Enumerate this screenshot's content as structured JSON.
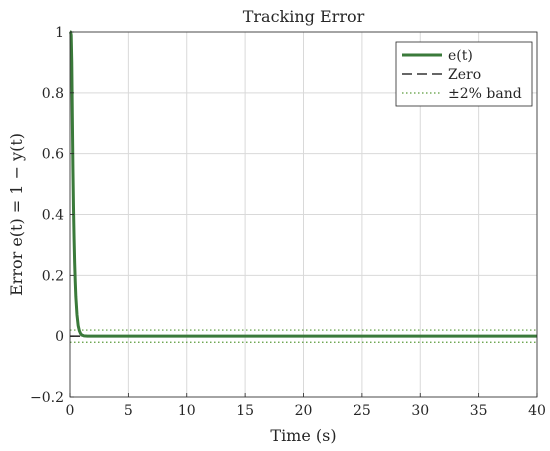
{
  "chart_data": {
    "type": "line",
    "title": "Tracking Error",
    "xlabel": "Time (s)",
    "ylabel": "Error e(t) = 1 − y(t)",
    "xlim": [
      0,
      40
    ],
    "ylim": [
      -0.2,
      1
    ],
    "x_ticks": [
      0,
      5,
      10,
      15,
      20,
      25,
      30,
      35,
      40
    ],
    "y_ticks": [
      -0.2,
      0,
      0.2,
      0.4,
      0.6,
      0.8,
      1
    ],
    "x_tick_labels": [
      "0",
      "5",
      "10",
      "15",
      "20",
      "25",
      "30",
      "35",
      "40"
    ],
    "y_tick_labels": [
      "−0.2",
      "0",
      "0.2",
      "0.4",
      "0.6",
      "0.8",
      "1"
    ],
    "grid": true,
    "legend_position": "top-right",
    "series": [
      {
        "name": "e(t)",
        "style": "solid",
        "color": "#3a7a3a",
        "x": [
          0,
          0.05,
          0.1,
          0.15,
          0.2,
          0.25,
          0.3,
          0.35,
          0.4,
          0.45,
          0.5,
          0.6,
          0.7,
          0.8,
          0.9,
          1.0,
          1.2,
          1.5,
          2,
          3,
          5,
          10,
          20,
          30,
          40
        ],
        "y": [
          1,
          1,
          0.99,
          0.9,
          0.72,
          0.55,
          0.42,
          0.32,
          0.24,
          0.18,
          0.13,
          0.07,
          0.035,
          0.018,
          0.009,
          0.004,
          0.001,
          0,
          0,
          0,
          0,
          0,
          0,
          0,
          0
        ]
      },
      {
        "name": "Zero",
        "style": "dashed",
        "color": "#333333",
        "x": [
          0,
          40
        ],
        "y": [
          0,
          0
        ]
      },
      {
        "name": "±2% band",
        "style": "dotted",
        "color": "#5a9a3a",
        "x": [
          0,
          40
        ],
        "y": [
          0.02,
          0.02
        ],
        "y_lower": [
          -0.02,
          -0.02
        ]
      }
    ]
  }
}
